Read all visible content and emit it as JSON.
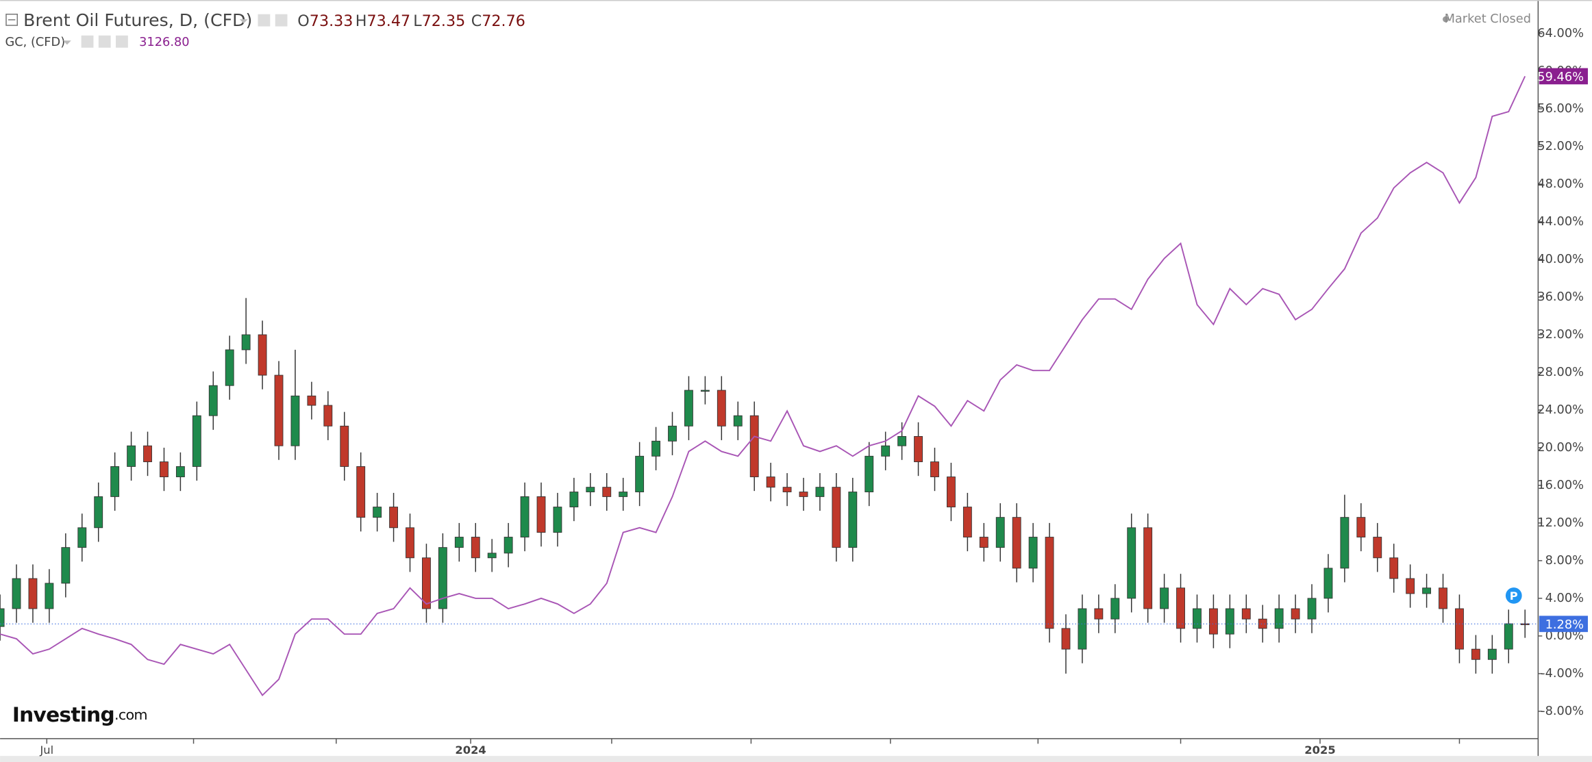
{
  "chart_data": {
    "type": "candlestick",
    "title": "Brent Oil Futures, D, (CFD)",
    "ohlc": [
      {
        "label": "O",
        "value": 73.33
      },
      {
        "label": "H",
        "value": 73.47
      },
      {
        "label": "L",
        "value": 72.35
      },
      {
        "label": "C",
        "value": 72.76
      }
    ],
    "compare_price": {
      "value": 3126.8,
      "label": "3126.80"
    },
    "status": "Market Closed",
    "marker": "P",
    "logo": "Investing",
    "logo_suffix": ".com",
    "x": [
      0,
      1,
      2,
      3,
      4,
      5,
      6,
      7,
      8,
      9,
      10,
      11,
      12,
      13,
      14,
      15,
      16,
      17,
      18,
      19,
      20,
      21,
      22,
      23,
      24,
      25,
      26,
      27,
      28,
      29,
      30,
      31,
      32,
      33,
      34,
      35,
      36,
      37,
      38,
      39,
      40,
      41,
      42,
      43,
      44,
      45,
      46,
      47,
      48,
      49,
      50,
      51,
      52,
      53,
      54,
      55,
      56,
      57,
      58,
      59,
      60,
      61,
      62,
      63,
      64,
      65,
      66,
      67,
      68,
      69,
      70,
      71,
      72,
      73,
      74,
      75,
      76,
      77,
      78,
      79,
      80,
      81,
      82,
      83,
      84,
      85,
      86,
      87,
      88,
      89,
      90,
      91,
      92,
      93
    ],
    "xlim": [
      0,
      93.8
    ],
    "xticks": [
      {
        "value": 2.85,
        "label": "Jul"
      },
      {
        "value": 11.8,
        "label": null
      },
      {
        "value": 20.5,
        "label": null
      },
      {
        "value": 28.7,
        "label": "2024"
      },
      {
        "value": 37.3,
        "label": null
      },
      {
        "value": 45.8,
        "label": null
      },
      {
        "value": 54.3,
        "label": null
      },
      {
        "value": 63.3,
        "label": null
      },
      {
        "value": 72.0,
        "label": null
      },
      {
        "value": 80.5,
        "label": "2025"
      },
      {
        "value": 89.0,
        "label": null
      }
    ],
    "ylim": [
      -10.91,
      67.56
    ],
    "yticks": [
      {
        "value": 64,
        "label": "64.00%"
      },
      {
        "value": 60,
        "label": "60.00%"
      },
      {
        "value": 56,
        "label": "56.00%"
      },
      {
        "value": 52,
        "label": "52.00%"
      },
      {
        "value": 48,
        "label": "48.00%"
      },
      {
        "value": 44,
        "label": "44.00%"
      },
      {
        "value": 40,
        "label": "40.00%"
      },
      {
        "value": 36,
        "label": "36.00%"
      },
      {
        "value": 32,
        "label": "32.00%"
      },
      {
        "value": 28,
        "label": "28.00%"
      },
      {
        "value": 24,
        "label": "24.00%"
      },
      {
        "value": 20,
        "label": "20.00%"
      },
      {
        "value": 16,
        "label": "16.00%"
      },
      {
        "value": 12,
        "label": "12.00%"
      },
      {
        "value": 8,
        "label": "8.00%"
      },
      {
        "value": 4,
        "label": "4.00%"
      },
      {
        "value": 0,
        "label": "0.00%"
      },
      {
        "value": -4,
        "label": "-4.00%"
      },
      {
        "value": -8,
        "label": "-8.00%"
      }
    ],
    "grid": false,
    "series": [
      {
        "type": "candlestick",
        "up_color": "#1f8a4c",
        "down_color": "#c0392b",
        "label_color": "#3d6fe0",
        "last_value_label": "1.28%",
        "open": [
          1.0,
          2.9,
          6.1,
          2.9,
          5.6,
          9.4,
          11.5,
          14.8,
          18.0,
          20.2,
          18.5,
          16.9,
          18.0,
          23.4,
          26.6,
          30.4,
          32.0,
          27.7,
          20.2,
          25.5,
          24.5,
          22.3,
          18.0,
          12.6,
          13.7,
          11.5,
          8.3,
          2.9,
          9.4,
          10.5,
          8.3,
          8.8,
          10.5,
          14.8,
          11.0,
          13.7,
          15.3,
          15.8,
          14.8,
          15.3,
          19.1,
          20.7,
          22.3,
          26.1,
          26.1,
          22.3,
          23.4,
          16.9,
          15.8,
          15.3,
          14.8,
          15.8,
          9.4,
          15.3,
          19.1,
          20.2,
          21.2,
          18.5,
          16.9,
          13.7,
          10.5,
          9.4,
          12.6,
          7.2,
          10.5,
          0.8,
          -1.4,
          2.9,
          1.8,
          4.0,
          11.5,
          2.9,
          5.1,
          0.8,
          2.9,
          0.2,
          2.9,
          1.8,
          0.8,
          2.9,
          1.8,
          4.0,
          7.2,
          12.6,
          10.5,
          8.3,
          6.1,
          4.5,
          5.1,
          2.9,
          -1.4,
          -2.5,
          -1.4,
          1.3
        ],
        "high": [
          4.4,
          7.6,
          7.6,
          7.1,
          10.9,
          13.0,
          16.3,
          19.5,
          21.7,
          21.7,
          20.0,
          19.5,
          24.9,
          28.1,
          31.9,
          35.9,
          33.5,
          29.2,
          30.4,
          27.0,
          26.0,
          23.8,
          19.5,
          15.2,
          15.2,
          13.0,
          9.8,
          10.9,
          12.0,
          12.0,
          10.3,
          12.0,
          16.3,
          16.3,
          15.2,
          16.8,
          17.3,
          17.3,
          16.8,
          20.6,
          22.2,
          23.8,
          27.6,
          27.6,
          27.6,
          24.9,
          24.9,
          18.4,
          17.3,
          16.8,
          17.3,
          17.3,
          16.8,
          20.6,
          21.7,
          22.7,
          22.7,
          20.0,
          18.4,
          15.2,
          12.0,
          14.1,
          14.1,
          12.0,
          12.0,
          2.3,
          4.4,
          4.4,
          5.5,
          13.0,
          13.0,
          6.6,
          6.6,
          4.4,
          4.4,
          4.4,
          4.4,
          3.3,
          4.4,
          4.4,
          5.5,
          8.7,
          15.0,
          14.1,
          12.0,
          9.8,
          7.6,
          6.6,
          6.6,
          4.4,
          0.1,
          0.1,
          2.8,
          2.8
        ],
        "low": [
          -0.5,
          1.4,
          1.4,
          1.4,
          4.1,
          7.9,
          10.0,
          13.3,
          16.5,
          17.0,
          15.4,
          15.4,
          16.5,
          21.9,
          25.1,
          28.9,
          26.2,
          18.7,
          18.7,
          23.0,
          20.8,
          16.5,
          11.1,
          11.1,
          10.0,
          6.8,
          1.4,
          1.4,
          7.9,
          6.8,
          6.8,
          7.3,
          9.0,
          9.5,
          9.5,
          12.2,
          13.8,
          13.3,
          13.3,
          13.8,
          17.6,
          19.2,
          20.8,
          24.6,
          20.8,
          20.8,
          15.4,
          14.3,
          13.8,
          13.3,
          13.3,
          7.9,
          7.9,
          13.8,
          17.6,
          18.7,
          17.0,
          15.4,
          12.2,
          9.0,
          7.9,
          7.9,
          5.7,
          5.7,
          -0.7,
          -4.0,
          -2.9,
          0.3,
          0.3,
          2.5,
          1.4,
          1.4,
          -0.7,
          -0.7,
          -1.3,
          -1.3,
          0.3,
          -0.7,
          -0.7,
          0.3,
          0.3,
          2.5,
          5.7,
          9.0,
          6.8,
          4.6,
          3.0,
          3.0,
          1.4,
          -2.9,
          -4.0,
          -4.0,
          -2.9,
          -0.2
        ],
        "close": [
          2.9,
          6.1,
          2.9,
          5.6,
          9.4,
          11.5,
          14.8,
          18.0,
          20.2,
          18.5,
          16.9,
          18.0,
          23.4,
          26.6,
          30.4,
          32.0,
          27.7,
          20.2,
          25.5,
          24.5,
          22.3,
          18.0,
          12.6,
          13.7,
          11.5,
          8.3,
          2.9,
          9.4,
          10.5,
          8.3,
          8.8,
          10.5,
          14.8,
          11.0,
          13.7,
          15.3,
          15.8,
          14.8,
          15.3,
          19.1,
          20.7,
          22.3,
          26.1,
          26.1,
          22.3,
          23.4,
          16.9,
          15.8,
          15.3,
          14.8,
          15.8,
          9.4,
          15.3,
          19.1,
          20.2,
          21.2,
          18.5,
          16.9,
          13.7,
          10.5,
          9.4,
          12.6,
          7.2,
          10.5,
          0.8,
          -1.4,
          2.9,
          1.8,
          4.0,
          11.5,
          2.9,
          5.1,
          0.8,
          2.9,
          0.2,
          2.9,
          1.8,
          0.8,
          2.9,
          1.8,
          4.0,
          7.2,
          12.6,
          10.5,
          8.3,
          6.1,
          4.5,
          5.1,
          2.9,
          -1.4,
          -2.5,
          -1.4,
          1.3,
          1.28
        ]
      },
      {
        "type": "line",
        "name": "GC, (CFD)",
        "color": "#a855b5",
        "label_color": "#8a1f8f",
        "last_value_label": "59.46%",
        "values": [
          0.2,
          -0.3,
          -1.9,
          -1.4,
          -0.3,
          0.8,
          0.2,
          -0.3,
          -0.9,
          -2.5,
          -3.0,
          -0.9,
          -1.4,
          -1.9,
          -0.9,
          -3.6,
          -6.3,
          -4.6,
          0.2,
          1.8,
          1.8,
          0.2,
          0.2,
          2.4,
          2.9,
          5.1,
          3.4,
          4.0,
          4.5,
          4.0,
          4.0,
          2.9,
          3.4,
          4.0,
          3.4,
          2.4,
          3.4,
          5.6,
          11.0,
          11.5,
          11.0,
          14.8,
          19.6,
          20.7,
          19.6,
          19.1,
          21.2,
          20.7,
          23.9,
          20.2,
          19.6,
          20.2,
          19.1,
          20.2,
          20.7,
          21.8,
          25.5,
          24.4,
          22.3,
          25.0,
          23.9,
          27.2,
          28.8,
          28.2,
          28.2,
          30.9,
          33.6,
          35.8,
          35.8,
          34.7,
          37.9,
          40.1,
          41.7,
          35.2,
          33.1,
          36.9,
          35.2,
          36.9,
          36.3,
          33.6,
          34.7,
          36.9,
          39.0,
          42.8,
          44.4,
          47.6,
          49.2,
          50.3,
          49.2,
          46.0,
          48.7,
          55.2,
          55.7,
          59.46
        ]
      }
    ]
  }
}
